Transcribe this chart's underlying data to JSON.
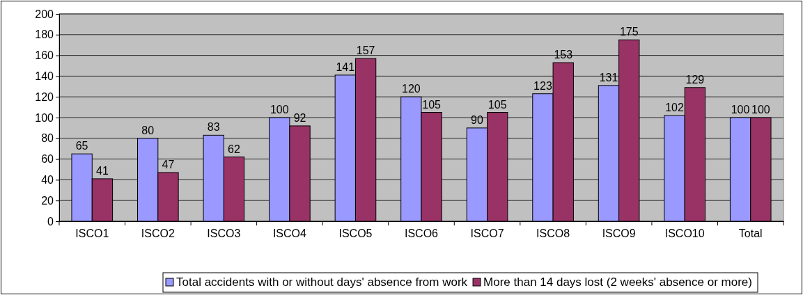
{
  "chart_data": {
    "type": "bar",
    "categories": [
      "ISCO1",
      "ISCO2",
      "ISCO3",
      "ISCO4",
      "ISCO5",
      "ISCO6",
      "ISCO7",
      "ISCO8",
      "ISCO9",
      "ISCO10",
      "Total"
    ],
    "series": [
      {
        "name": "Total accidents with or without days' absence from work",
        "color": "#9999ff",
        "values": [
          65,
          80,
          83,
          100,
          141,
          120,
          90,
          123,
          131,
          102,
          100
        ]
      },
      {
        "name": "More than 14 days lost (2 weeks' absence or more)",
        "color": "#993366",
        "values": [
          41,
          47,
          62,
          92,
          157,
          105,
          105,
          153,
          175,
          129,
          100
        ]
      }
    ],
    "ylim": [
      0,
      200
    ],
    "yticks": [
      0,
      20,
      40,
      60,
      80,
      100,
      120,
      140,
      160,
      180,
      200
    ],
    "grid": "y",
    "data_labels": true,
    "legend": "bottom"
  }
}
